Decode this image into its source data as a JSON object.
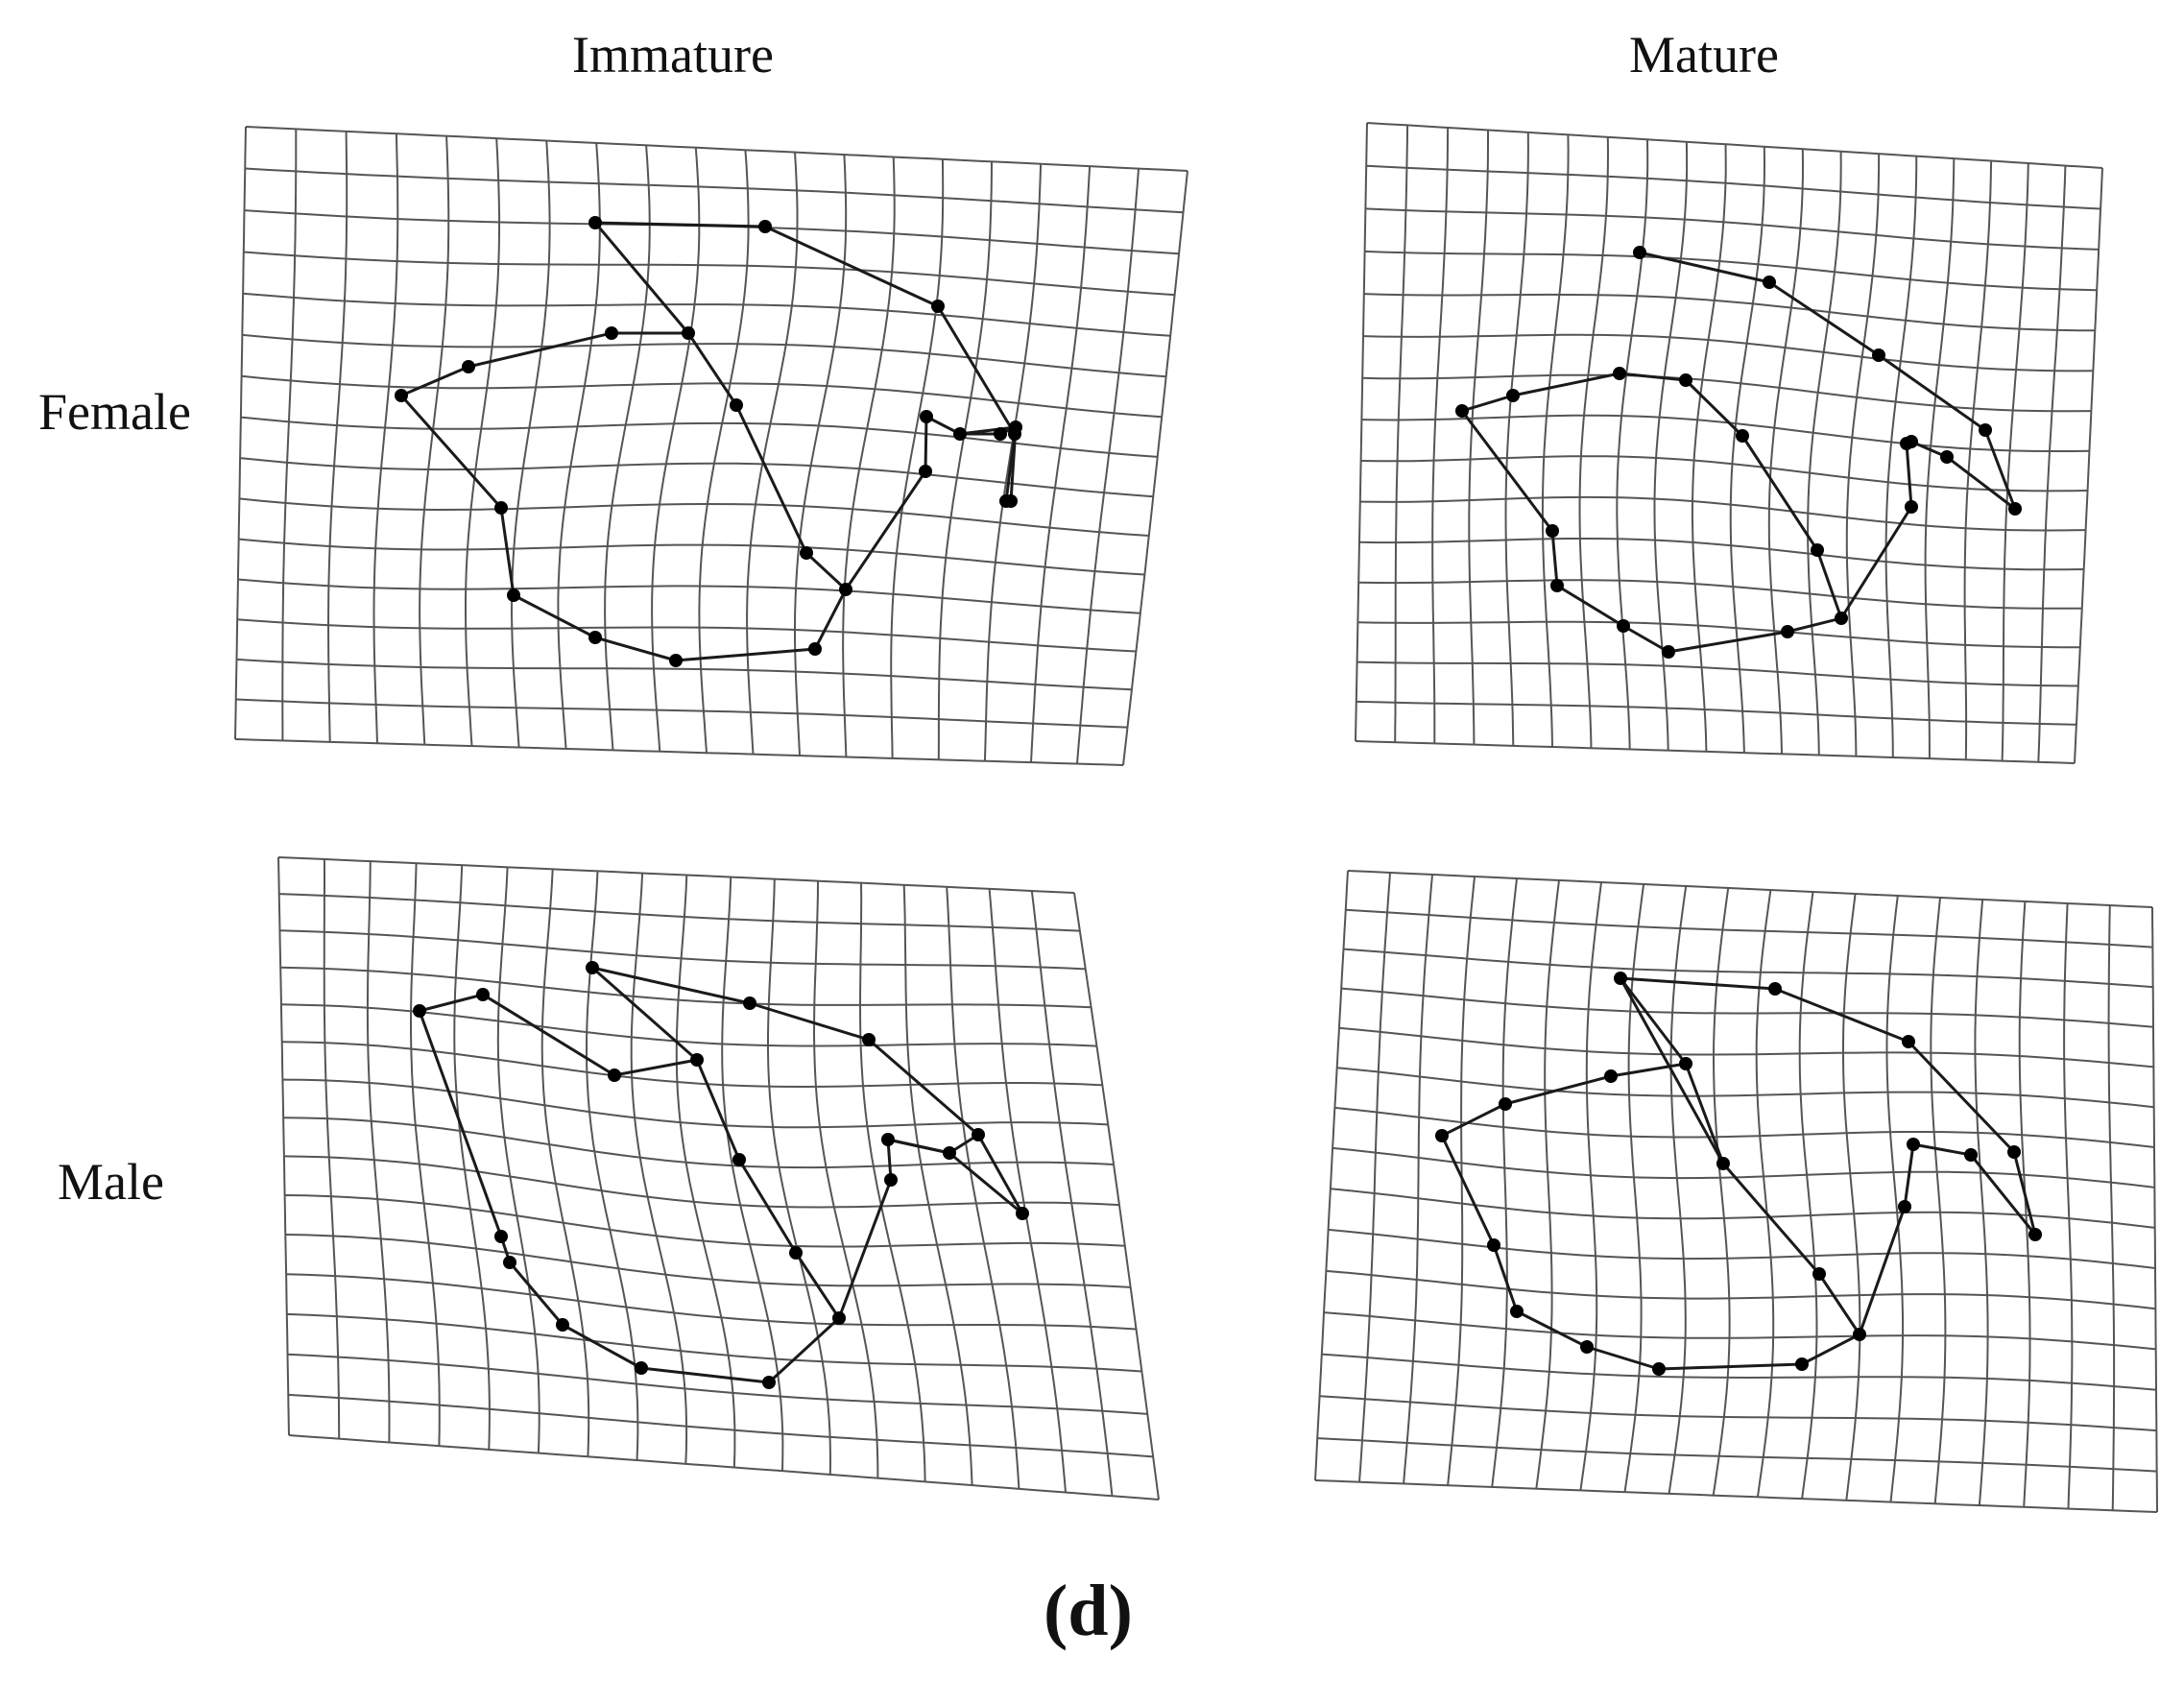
{
  "figure": {
    "columns": [
      "Immature",
      "Mature"
    ],
    "rows": [
      "Female",
      "Male"
    ],
    "panel_label": "(d)"
  },
  "style": {
    "grid_color": "#555555",
    "outline_color": "#1a1a1a",
    "landmark_color": "#000000",
    "background": "#ffffff"
  }
}
